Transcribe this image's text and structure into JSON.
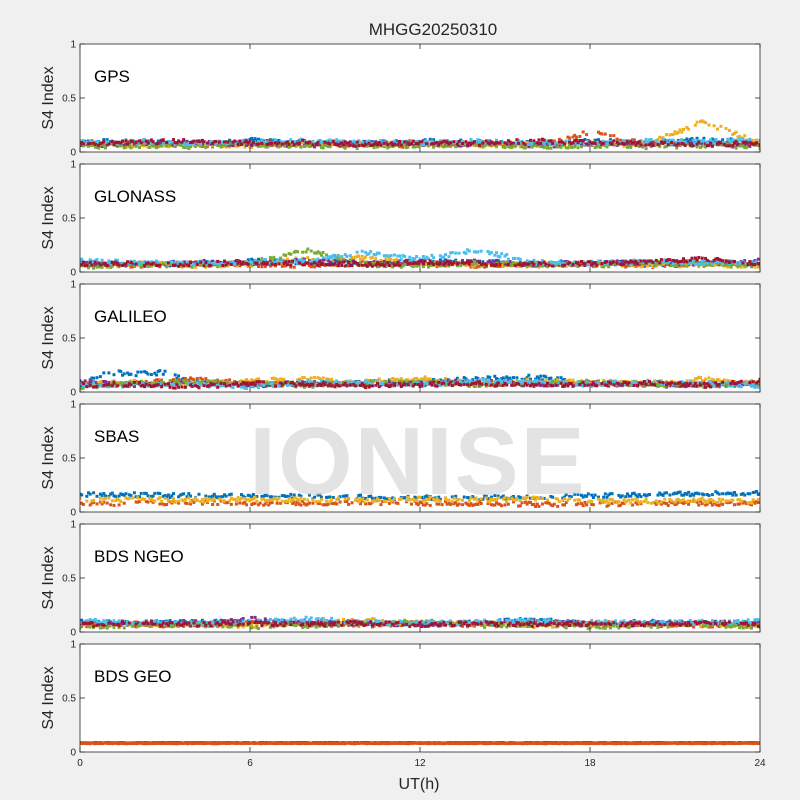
{
  "figure": {
    "title": "MHGG20250310",
    "watermark": "IONISE",
    "xlabel": "UT(h)",
    "colors": [
      "#0072bd",
      "#d95319",
      "#edb120",
      "#7e2f8e",
      "#77ac30",
      "#4dbeee",
      "#a2142f"
    ]
  },
  "chart_data": [
    {
      "type": "scatter",
      "panel": "GPS",
      "ylabel": "S4 Index",
      "xlim": [
        0,
        24
      ],
      "ylim": [
        0,
        1
      ],
      "x_ticks": [
        0,
        6,
        12,
        18,
        24
      ],
      "y_ticks": [
        0,
        0.5,
        1
      ],
      "y_tick_labels": [
        "0",
        "0.5",
        "1"
      ],
      "series": [
        {
          "values_x": [
            0,
            2,
            4,
            6,
            8,
            10,
            12,
            14,
            16,
            18,
            20,
            22,
            24
          ],
          "values_y": [
            0.1,
            0.09,
            0.08,
            0.11,
            0.09,
            0.08,
            0.1,
            0.09,
            0.08,
            0.1,
            0.09,
            0.11,
            0.1
          ]
        },
        {
          "values_x": [
            0,
            2,
            4,
            6,
            8,
            10,
            12,
            14,
            16,
            18,
            20,
            22,
            24
          ],
          "values_y": [
            0.07,
            0.08,
            0.06,
            0.08,
            0.07,
            0.07,
            0.06,
            0.08,
            0.07,
            0.18,
            0.08,
            0.09,
            0.07
          ]
        },
        {
          "values_x": [
            0,
            2,
            4,
            6,
            8,
            10,
            12,
            14,
            16,
            18,
            20,
            22,
            24
          ],
          "values_y": [
            0.08,
            0.06,
            0.07,
            0.06,
            0.08,
            0.07,
            0.08,
            0.06,
            0.07,
            0.08,
            0.07,
            0.28,
            0.08
          ]
        },
        {
          "values_x": [
            0,
            2,
            4,
            6,
            8,
            10,
            12,
            14,
            16,
            18,
            20,
            22,
            24
          ],
          "values_y": [
            0.06,
            0.07,
            0.09,
            0.07,
            0.06,
            0.08,
            0.07,
            0.07,
            0.06,
            0.07,
            0.08,
            0.07,
            0.06
          ]
        },
        {
          "values_x": [
            0,
            2,
            4,
            6,
            8,
            10,
            12,
            14,
            16,
            18,
            20,
            22,
            24
          ],
          "values_y": [
            0.05,
            0.06,
            0.05,
            0.07,
            0.06,
            0.05,
            0.06,
            0.07,
            0.05,
            0.06,
            0.05,
            0.06,
            0.05
          ]
        },
        {
          "values_x": [
            0,
            2,
            4,
            6,
            8,
            10,
            12,
            14,
            16,
            18,
            20,
            22,
            24
          ],
          "values_y": [
            0.09,
            0.1,
            0.08,
            0.09,
            0.1,
            0.09,
            0.08,
            0.1,
            0.09,
            0.08,
            0.1,
            0.09,
            0.12
          ]
        },
        {
          "values_x": [
            0,
            2,
            4,
            6,
            8,
            10,
            12,
            14,
            16,
            18,
            20,
            22,
            24
          ],
          "values_y": [
            0.08,
            0.09,
            0.1,
            0.08,
            0.09,
            0.07,
            0.09,
            0.08,
            0.1,
            0.09,
            0.08,
            0.07,
            0.08
          ]
        }
      ]
    },
    {
      "type": "scatter",
      "panel": "GLONASS",
      "ylabel": "S4 Index",
      "xlim": [
        0,
        24
      ],
      "ylim": [
        0,
        1
      ],
      "x_ticks": [
        0,
        6,
        12,
        18,
        24
      ],
      "y_ticks": [
        0,
        0.5,
        1
      ],
      "y_tick_labels": [
        "0",
        "0.5",
        "1"
      ],
      "series": [
        {
          "values_x": [
            0,
            2,
            4,
            6,
            8,
            10,
            12,
            14,
            16,
            18,
            20,
            22,
            24
          ],
          "values_y": [
            0.09,
            0.08,
            0.07,
            0.1,
            0.09,
            0.08,
            0.1,
            0.09,
            0.08,
            0.09,
            0.07,
            0.09,
            0.08
          ]
        },
        {
          "values_x": [
            0,
            2,
            4,
            6,
            8,
            10,
            12,
            14,
            16,
            18,
            20,
            22,
            24
          ],
          "values_y": [
            0.07,
            0.06,
            0.08,
            0.07,
            0.06,
            0.08,
            0.07,
            0.06,
            0.08,
            0.07,
            0.06,
            0.08,
            0.07
          ]
        },
        {
          "values_x": [
            0,
            2,
            4,
            6,
            8,
            10,
            12,
            14,
            16,
            18,
            20,
            22,
            24
          ],
          "values_y": [
            0.06,
            0.08,
            0.06,
            0.07,
            0.12,
            0.13,
            0.08,
            0.07,
            0.06,
            0.08,
            0.06,
            0.07,
            0.06
          ]
        },
        {
          "values_x": [
            0,
            2,
            4,
            6,
            8,
            10,
            12,
            14,
            16,
            18,
            20,
            22,
            24
          ],
          "values_y": [
            0.08,
            0.07,
            0.09,
            0.08,
            0.1,
            0.09,
            0.08,
            0.1,
            0.07,
            0.08,
            0.09,
            0.08,
            0.1
          ]
        },
        {
          "values_x": [
            0,
            2,
            4,
            6,
            8,
            10,
            12,
            14,
            16,
            18,
            20,
            22,
            24
          ],
          "values_y": [
            0.05,
            0.07,
            0.06,
            0.08,
            0.2,
            0.07,
            0.06,
            0.08,
            0.07,
            0.06,
            0.08,
            0.07,
            0.06
          ]
        },
        {
          "values_x": [
            0,
            2,
            4,
            6,
            8,
            10,
            12,
            14,
            16,
            18,
            20,
            22,
            24
          ],
          "values_y": [
            0.1,
            0.09,
            0.08,
            0.09,
            0.1,
            0.18,
            0.12,
            0.2,
            0.09,
            0.08,
            0.1,
            0.09,
            0.08
          ]
        },
        {
          "values_x": [
            0,
            2,
            4,
            6,
            8,
            10,
            12,
            14,
            16,
            18,
            20,
            22,
            24
          ],
          "values_y": [
            0.07,
            0.08,
            0.07,
            0.09,
            0.08,
            0.07,
            0.09,
            0.08,
            0.07,
            0.08,
            0.09,
            0.12,
            0.08
          ]
        }
      ]
    },
    {
      "type": "scatter",
      "panel": "GALILEO",
      "ylabel": "S4 Index",
      "xlim": [
        0,
        24
      ],
      "ylim": [
        0,
        1
      ],
      "x_ticks": [
        0,
        6,
        12,
        18,
        24
      ],
      "y_ticks": [
        0,
        0.5,
        1
      ],
      "y_tick_labels": [
        "0",
        "0.5",
        "1"
      ],
      "series": [
        {
          "values_x": [
            0,
            1,
            2,
            3,
            4,
            6,
            8,
            10,
            12,
            14,
            16,
            18,
            20,
            22,
            24
          ],
          "values_y": [
            0.06,
            0.18,
            0.17,
            0.18,
            0.09,
            0.07,
            0.08,
            0.09,
            0.1,
            0.12,
            0.14,
            0.09,
            0.08,
            0.07,
            0.06
          ]
        },
        {
          "values_x": [
            0,
            2,
            4,
            6,
            8,
            10,
            12,
            14,
            16,
            18,
            20,
            22,
            24
          ],
          "values_y": [
            0.07,
            0.08,
            0.12,
            0.08,
            0.07,
            0.09,
            0.08,
            0.07,
            0.09,
            0.08,
            0.07,
            0.08,
            0.07
          ]
        },
        {
          "values_x": [
            0,
            2,
            4,
            6,
            8,
            10,
            12,
            14,
            16,
            18,
            20,
            22,
            24
          ],
          "values_y": [
            0.08,
            0.09,
            0.07,
            0.1,
            0.12,
            0.09,
            0.13,
            0.08,
            0.1,
            0.09,
            0.08,
            0.12,
            0.09
          ]
        },
        {
          "values_x": [
            0,
            2,
            4,
            6,
            8,
            10,
            12,
            14,
            16,
            18,
            20,
            22,
            24
          ],
          "values_y": [
            0.09,
            0.07,
            0.08,
            0.06,
            0.08,
            0.07,
            0.08,
            0.09,
            0.07,
            0.08,
            0.06,
            0.07,
            0.08
          ]
        },
        {
          "values_x": [
            0,
            2,
            4,
            6,
            8,
            10,
            12,
            14,
            16,
            18,
            20,
            22,
            24
          ],
          "values_y": [
            0.05,
            0.08,
            0.09,
            0.08,
            0.06,
            0.08,
            0.09,
            0.07,
            0.08,
            0.09,
            0.07,
            0.06,
            0.08
          ]
        },
        {
          "values_x": [
            0,
            2,
            4,
            6,
            8,
            10,
            12,
            14,
            16,
            18,
            20,
            22,
            24
          ],
          "values_y": [
            0.07,
            0.06,
            0.07,
            0.05,
            0.09,
            0.08,
            0.07,
            0.1,
            0.08,
            0.07,
            0.09,
            0.08,
            0.06
          ]
        },
        {
          "values_x": [
            0,
            2,
            4,
            6,
            8,
            10,
            12,
            14,
            16,
            18,
            20,
            22,
            24
          ],
          "values_y": [
            0.06,
            0.07,
            0.05,
            0.08,
            0.07,
            0.06,
            0.07,
            0.08,
            0.06,
            0.07,
            0.08,
            0.06,
            0.1
          ]
        }
      ]
    },
    {
      "type": "scatter",
      "panel": "SBAS",
      "ylabel": "S4 Index",
      "xlim": [
        0,
        24
      ],
      "ylim": [
        0,
        1
      ],
      "x_ticks": [
        0,
        6,
        12,
        18,
        24
      ],
      "y_ticks": [
        0,
        0.5,
        1
      ],
      "y_tick_labels": [
        "0",
        "0.5",
        "1"
      ],
      "series": [
        {
          "values_x": [
            0,
            2,
            4,
            6,
            8,
            10,
            12,
            14,
            16,
            18,
            20,
            22,
            24
          ],
          "values_y": [
            0.16,
            0.16,
            0.15,
            0.15,
            0.14,
            0.14,
            0.13,
            0.13,
            0.14,
            0.15,
            0.16,
            0.17,
            0.17
          ]
        },
        {
          "values_x": [
            0,
            2,
            4,
            6,
            8,
            10,
            12,
            14,
            16,
            18,
            20,
            22,
            24
          ],
          "values_y": [
            0.08,
            0.08,
            0.09,
            0.08,
            0.08,
            0.09,
            0.08,
            0.08,
            0.07,
            0.07,
            0.08,
            0.08,
            0.08
          ]
        },
        {
          "values_x": [
            0,
            2,
            4,
            6,
            8,
            10,
            12,
            14,
            16,
            18,
            20,
            22,
            24
          ],
          "values_y": [
            0.11,
            0.12,
            0.11,
            0.12,
            0.11,
            0.11,
            0.12,
            0.11,
            0.12,
            0.1,
            0.1,
            0.11,
            0.1
          ]
        }
      ]
    },
    {
      "type": "scatter",
      "panel": "BDS NGEO",
      "ylabel": "S4 Index",
      "xlim": [
        0,
        24
      ],
      "ylim": [
        0,
        1
      ],
      "x_ticks": [
        0,
        6,
        12,
        18,
        24
      ],
      "y_ticks": [
        0,
        0.5,
        1
      ],
      "y_tick_labels": [
        "0",
        "0.5",
        "1"
      ],
      "series": [
        {
          "values_x": [
            0,
            2,
            4,
            6,
            8,
            10,
            12,
            14,
            16,
            18,
            20,
            22,
            24
          ],
          "values_y": [
            0.09,
            0.08,
            0.09,
            0.1,
            0.08,
            0.09,
            0.08,
            0.09,
            0.11,
            0.08,
            0.09,
            0.08,
            0.09
          ]
        },
        {
          "values_x": [
            0,
            2,
            4,
            6,
            8,
            10,
            12,
            14,
            16,
            18,
            20,
            22,
            24
          ],
          "values_y": [
            0.07,
            0.06,
            0.07,
            0.08,
            0.07,
            0.06,
            0.08,
            0.07,
            0.09,
            0.08,
            0.07,
            0.06,
            0.07
          ]
        },
        {
          "values_x": [
            0,
            2,
            4,
            6,
            8,
            10,
            12,
            14,
            16,
            18,
            20,
            22,
            24
          ],
          "values_y": [
            0.06,
            0.08,
            0.07,
            0.06,
            0.08,
            0.11,
            0.07,
            0.08,
            0.06,
            0.07,
            0.08,
            0.07,
            0.06
          ]
        },
        {
          "values_x": [
            0,
            2,
            4,
            6,
            8,
            10,
            12,
            14,
            16,
            18,
            20,
            22,
            24
          ],
          "values_y": [
            0.08,
            0.07,
            0.08,
            0.12,
            0.09,
            0.08,
            0.07,
            0.08,
            0.09,
            0.07,
            0.08,
            0.09,
            0.08
          ]
        },
        {
          "values_x": [
            0,
            2,
            4,
            6,
            8,
            10,
            12,
            14,
            16,
            18,
            20,
            22,
            24
          ],
          "values_y": [
            0.05,
            0.06,
            0.07,
            0.05,
            0.06,
            0.07,
            0.1,
            0.06,
            0.07,
            0.05,
            0.06,
            0.07,
            0.05
          ]
        },
        {
          "values_x": [
            0,
            2,
            4,
            6,
            8,
            10,
            12,
            14,
            16,
            18,
            20,
            22,
            24
          ],
          "values_y": [
            0.1,
            0.09,
            0.08,
            0.09,
            0.12,
            0.09,
            0.08,
            0.09,
            0.1,
            0.09,
            0.08,
            0.09,
            0.1
          ]
        },
        {
          "values_x": [
            0,
            2,
            4,
            6,
            8,
            10,
            12,
            14,
            16,
            18,
            20,
            22,
            24
          ],
          "values_y": [
            0.07,
            0.08,
            0.07,
            0.08,
            0.07,
            0.08,
            0.07,
            0.08,
            0.07,
            0.08,
            0.07,
            0.08,
            0.07
          ]
        }
      ]
    },
    {
      "type": "scatter",
      "panel": "BDS GEO",
      "ylabel": "S4 Index",
      "xlim": [
        0,
        24
      ],
      "ylim": [
        0,
        1
      ],
      "x_ticks": [
        0,
        6,
        12,
        18,
        24
      ],
      "y_ticks": [
        0,
        0.5,
        1
      ],
      "y_tick_labels": [
        "0",
        "0.5",
        "1"
      ],
      "series": [
        {
          "values_x": [
            0,
            4,
            8,
            12,
            16,
            20,
            24
          ],
          "values_y": [
            0.085,
            0.085,
            0.085,
            0.085,
            0.085,
            0.085,
            0.085
          ]
        },
        {
          "values_x": [
            0,
            4,
            8,
            12,
            16,
            20,
            24
          ],
          "values_y": [
            0.08,
            0.08,
            0.08,
            0.08,
            0.08,
            0.08,
            0.08
          ]
        }
      ]
    }
  ]
}
